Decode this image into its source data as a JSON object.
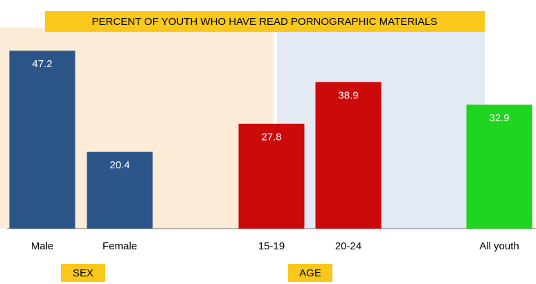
{
  "chart_data": {
    "type": "bar",
    "title": "PERCENT OF YOUTH WHO HAVE READ PORNOGRAPHIC MATERIALS",
    "categories": [
      "Male",
      "Female",
      "15-19",
      "20-24",
      "All youth"
    ],
    "values": [
      47.2,
      20.4,
      27.8,
      38.9,
      32.9
    ],
    "colors": [
      "#2c5589",
      "#2c5589",
      "#cc0a0a",
      "#cc0a0a",
      "#1fd51f"
    ],
    "groups": [
      "SEX",
      "AGE"
    ],
    "ylim": [
      0,
      50
    ]
  }
}
